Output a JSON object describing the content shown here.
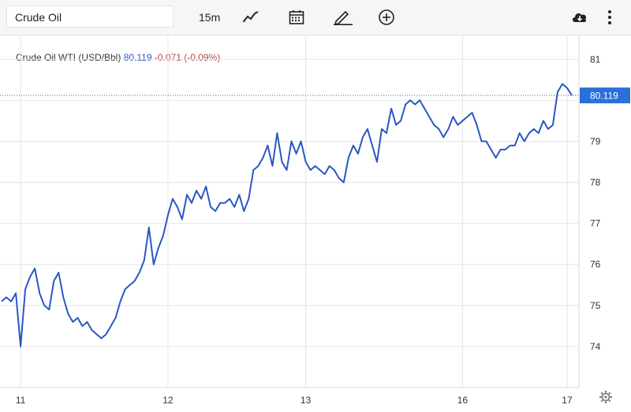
{
  "toolbar": {
    "symbol": "Crude Oil",
    "interval": "15m",
    "icons": [
      "line-chart-icon",
      "calendar-icon",
      "pencil-icon",
      "plus-circle-icon",
      "cloud-download-icon",
      "more-vertical-icon"
    ]
  },
  "legend": {
    "name": "Crude Oil WTI (USD/Bbl)",
    "price": "80.119",
    "change": "-0.071",
    "change_pct": "(-0.09%)"
  },
  "colors": {
    "line": "#2a57c4",
    "price_tag": "#2a6fdb",
    "negative": "#b34b4b",
    "grid": "#e6e6e6"
  },
  "chart_data": {
    "type": "line",
    "series": [
      {
        "values": [
          75.1,
          75.2,
          75.1,
          75.3,
          74.0,
          75.4,
          75.7,
          75.9,
          75.3,
          75.0,
          74.9,
          75.6,
          75.8,
          75.2,
          74.8,
          74.6,
          74.7,
          74.5,
          74.6,
          74.4,
          74.3,
          74.2,
          74.3,
          74.5,
          74.7,
          75.1,
          75.4,
          75.5,
          75.6,
          75.8,
          76.1,
          76.9,
          76.0,
          76.4,
          76.7,
          77.2,
          77.6,
          77.4,
          77.1,
          77.7,
          77.5,
          77.8,
          77.6,
          77.9,
          77.4,
          77.3,
          77.5,
          77.5,
          77.6,
          77.4,
          77.7,
          77.3,
          77.6,
          78.3,
          78.4,
          78.6,
          78.9,
          78.4,
          79.2,
          78.5,
          78.3,
          79.0,
          78.7,
          79.0,
          78.5,
          78.3,
          78.4,
          78.3,
          78.2,
          78.4,
          78.3,
          78.1,
          78.0,
          78.6,
          78.9,
          78.7,
          79.1,
          79.3,
          78.9,
          78.5,
          79.3,
          79.2,
          79.8,
          79.4,
          79.5,
          79.9,
          80.0,
          79.9,
          80.0,
          79.8,
          79.6,
          79.4,
          79.3,
          79.1,
          79.3,
          79.6,
          79.4,
          79.5,
          79.6,
          79.7,
          79.4,
          79.0,
          79.0,
          78.8,
          78.6,
          78.8,
          78.8,
          78.9,
          78.9,
          79.2,
          79.0,
          79.2,
          79.3,
          79.2,
          79.5,
          79.3,
          79.4,
          80.2,
          80.4,
          80.3,
          80.119
        ],
        "color": "#2a57c4"
      }
    ],
    "x_tick_labels": [
      {
        "label": "11",
        "index": 4
      },
      {
        "label": "12",
        "index": 35
      },
      {
        "label": "13",
        "index": 64
      },
      {
        "label": "16",
        "index": 97
      },
      {
        "label": "17",
        "index": 119
      }
    ],
    "y_ticks": [
      74,
      75,
      76,
      77,
      78,
      79,
      80,
      81
    ],
    "y_tick_labels": [
      "74",
      "75",
      "76",
      "77",
      "78",
      "79",
      "",
      "81"
    ],
    "ylim": [
      73.0,
      81.6
    ],
    "last_price": 80.119,
    "last_price_label": "80.119",
    "grid": true
  }
}
